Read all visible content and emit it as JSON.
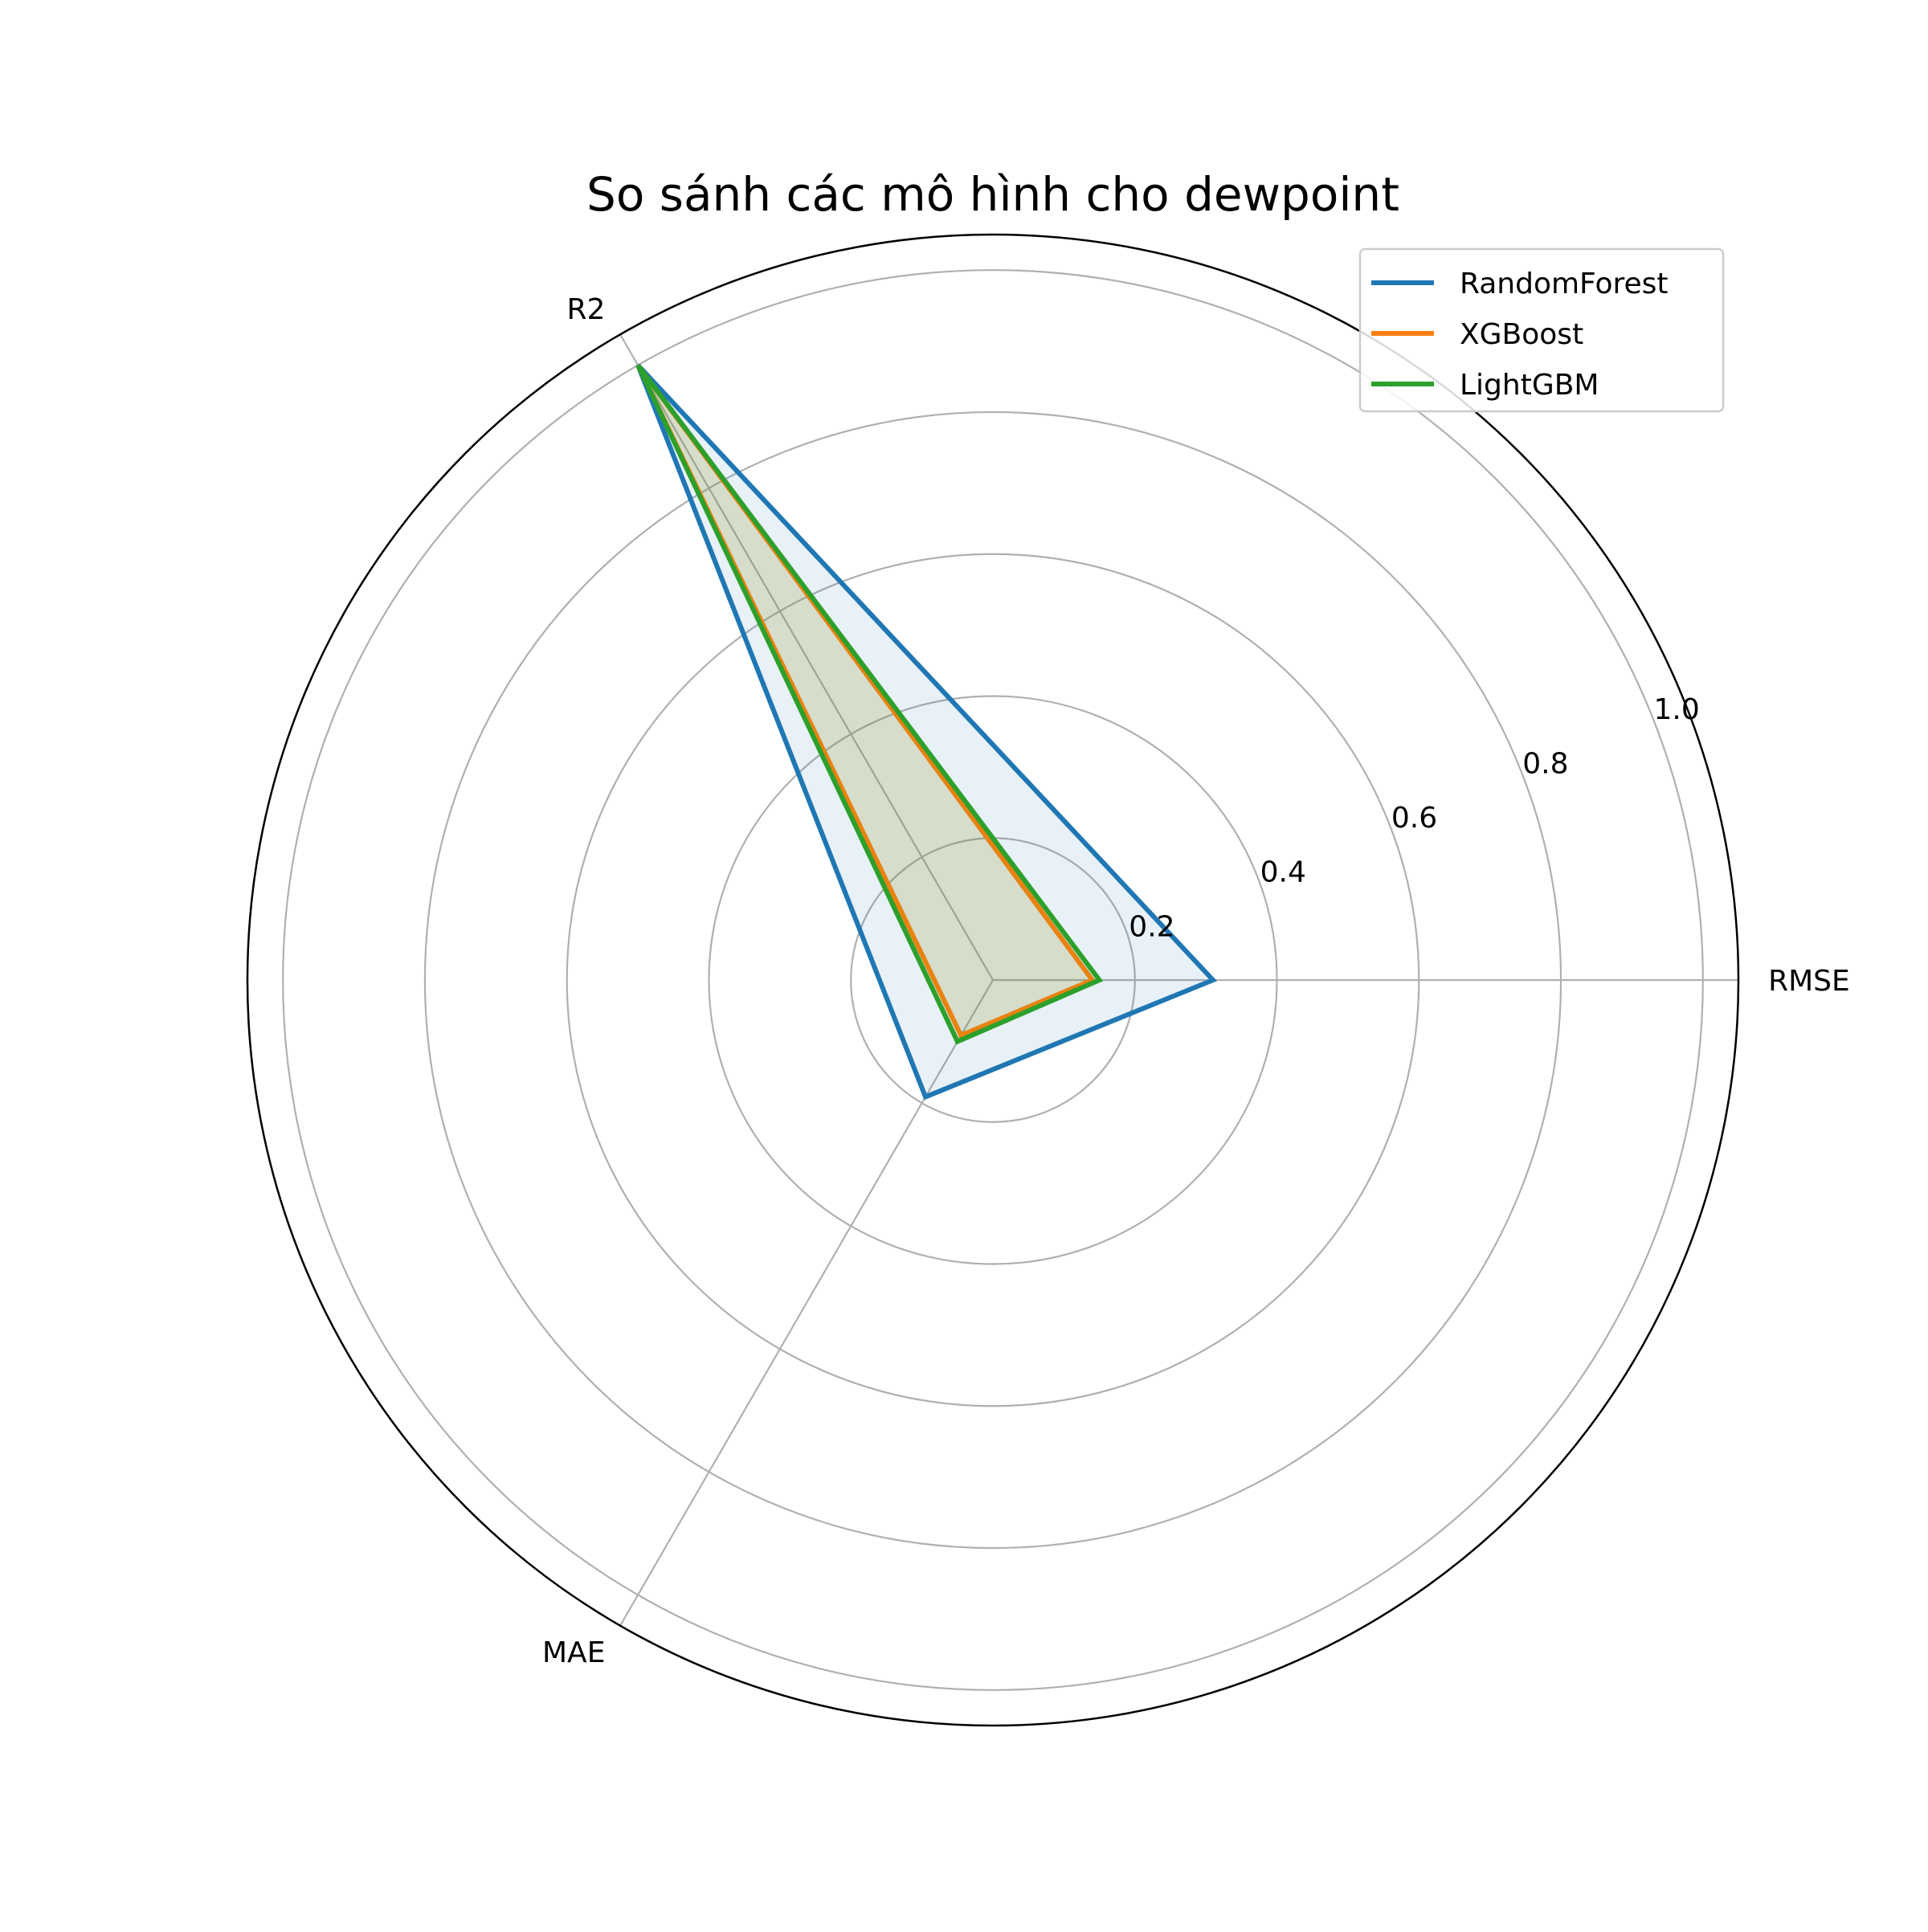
{
  "chart_data": {
    "type": "radar",
    "title": "So sánh các mô hình cho dewpoint",
    "axes": [
      "RMSE",
      "R2",
      "MAE"
    ],
    "rlim": [
      0,
      1.05
    ],
    "rticks": [
      0.2,
      0.4,
      0.6,
      0.8,
      1.0
    ],
    "rtick_labels": [
      "0.2",
      "0.4",
      "0.6",
      "0.8",
      "1.0"
    ],
    "grid": true,
    "legend_position": "top-right",
    "series": [
      {
        "name": "RandomForest",
        "color": "#1f77b4",
        "values": [
          0.31,
          1.0,
          0.19
        ]
      },
      {
        "name": "XGBoost",
        "color": "#ff7f0e",
        "values": [
          0.14,
          1.0,
          0.09
        ]
      },
      {
        "name": "LightGBM",
        "color": "#2ca02c",
        "values": [
          0.15,
          1.0,
          0.1
        ]
      }
    ]
  }
}
